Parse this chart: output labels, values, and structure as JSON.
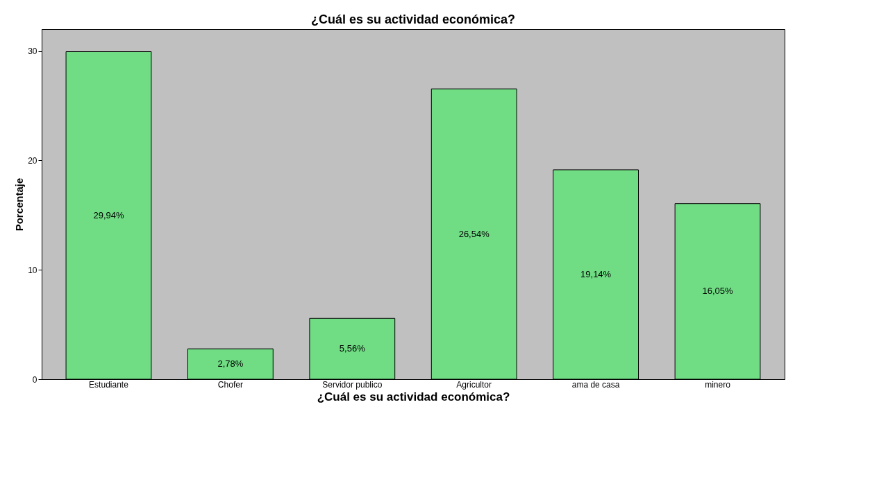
{
  "chart_data": {
    "type": "bar",
    "title": "¿Cuál es su actividad económica?",
    "xlabel": "¿Cuál es su actividad económica?",
    "ylabel": "Porcentaje",
    "categories": [
      "Estudiante",
      "Chofer",
      "Servidor publico",
      "Agricultor",
      "ama de casa",
      "minero"
    ],
    "values": [
      29.94,
      2.78,
      5.56,
      26.54,
      19.14,
      16.05
    ],
    "value_labels": [
      "29,94%",
      "2,78%",
      "5,56%",
      "26,54%",
      "19,14%",
      "16,05%"
    ],
    "color": "#70dc84",
    "ylim": [
      0,
      32
    ],
    "yticks": [
      0,
      10,
      20,
      30
    ],
    "grid": false
  }
}
